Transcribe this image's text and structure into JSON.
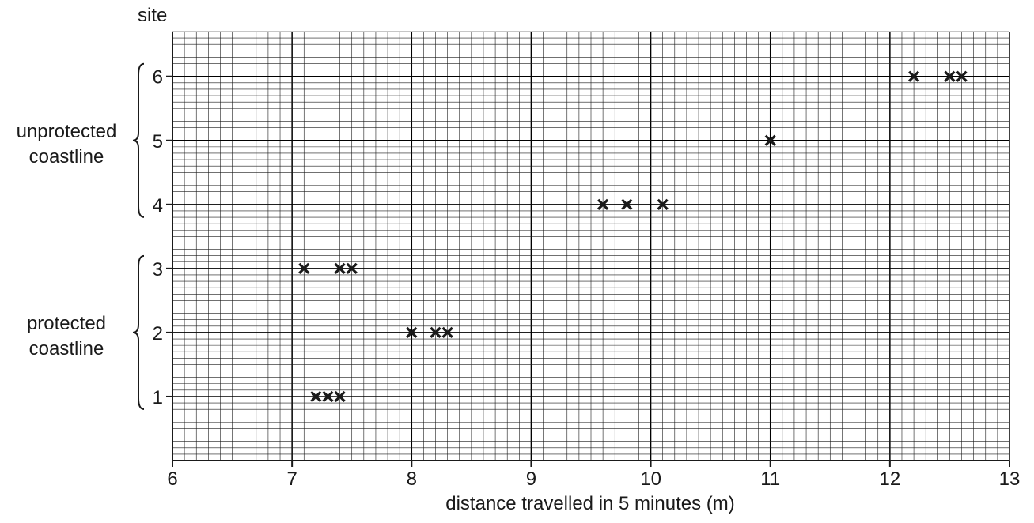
{
  "chart_data": {
    "type": "scatter",
    "xlabel": "distance travelled in 5 minutes (m)",
    "ylabel": "site",
    "xlim": [
      6,
      13
    ],
    "ylim": [
      0,
      6.7
    ],
    "x_ticks": [
      "6",
      "7",
      "8",
      "9",
      "10",
      "11",
      "12",
      "13"
    ],
    "y_ticks": [
      "1",
      "2",
      "3",
      "4",
      "5",
      "6"
    ],
    "grid": true,
    "marker": "cross",
    "groups": [
      {
        "label_lines": [
          "unprotected",
          "coastline"
        ],
        "sites": [
          4,
          6
        ]
      },
      {
        "label_lines": [
          "protected",
          "coastline"
        ],
        "sites": [
          1,
          3
        ]
      }
    ],
    "points": [
      {
        "x": 12.2,
        "y": 6
      },
      {
        "x": 12.5,
        "y": 6
      },
      {
        "x": 12.6,
        "y": 6
      },
      {
        "x": 11.0,
        "y": 5
      },
      {
        "x": 9.6,
        "y": 4
      },
      {
        "x": 9.8,
        "y": 4
      },
      {
        "x": 10.1,
        "y": 4
      },
      {
        "x": 7.1,
        "y": 3
      },
      {
        "x": 7.4,
        "y": 3
      },
      {
        "x": 7.5,
        "y": 3
      },
      {
        "x": 8.0,
        "y": 2
      },
      {
        "x": 8.2,
        "y": 2
      },
      {
        "x": 8.3,
        "y": 2
      },
      {
        "x": 7.2,
        "y": 1
      },
      {
        "x": 7.3,
        "y": 1
      },
      {
        "x": 7.4,
        "y": 1
      }
    ],
    "colors": {
      "ink": "#1a1a1a",
      "grid_minor": "#1a1a1a",
      "grid_major": "#000000"
    }
  }
}
